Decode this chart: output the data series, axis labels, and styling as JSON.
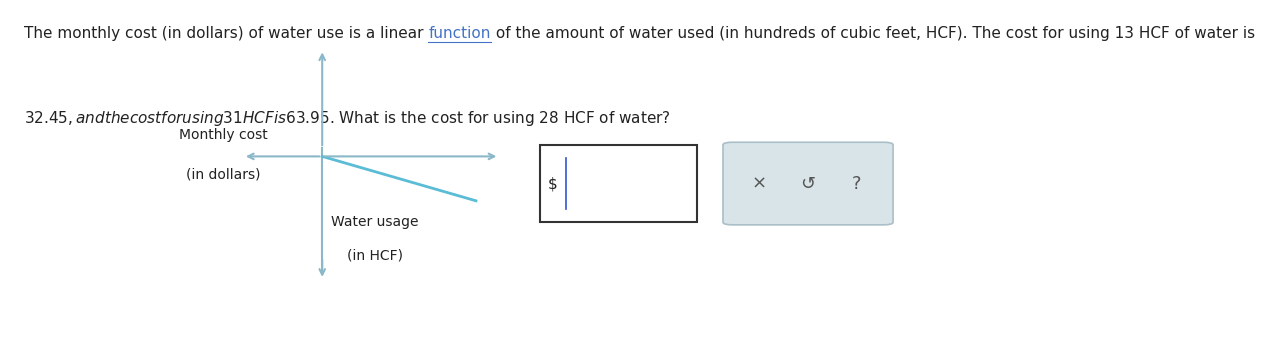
{
  "background_color": "#ffffff",
  "text_part1": "The monthly cost (in dollars) of water use is a linear ",
  "text_link": "function",
  "text_part2": " of the amount of water used (in hundreds of cubic feet, HCF). The cost for using 13 HCF of water is",
  "text_line2": "$32.45, and the cost for using 31 HCF is $63.95. What is the cost for using 28 HCF of water?",
  "axis_color": "#8ab8c8",
  "line_color": "#5bbcd6",
  "ylabel_line1": "Monthly cost",
  "ylabel_line2": "(in dollars)",
  "xlabel_line1": "Water usage",
  "xlabel_line2": "(in HCF)",
  "font_size_text": 11,
  "font_size_labels": 10,
  "text_color": "#222222",
  "link_color": "#4472c4",
  "dollar_sign": "$",
  "button_color": "#d8e4e8",
  "button_border_color": "#aabfc8"
}
